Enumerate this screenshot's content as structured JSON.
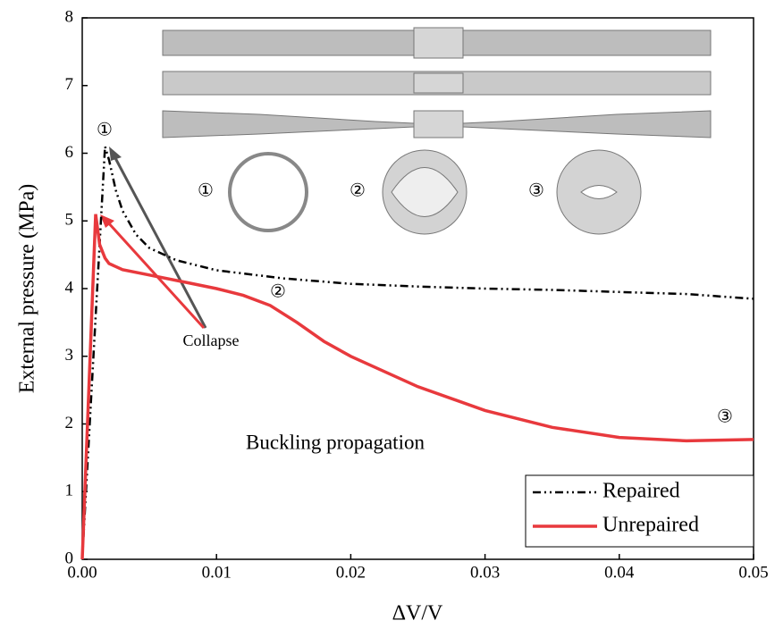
{
  "chart_data": {
    "type": "line",
    "xlabel": "ΔV/V",
    "ylabel": "External pressure (MPa)",
    "xlim": [
      0,
      0.05
    ],
    "ylim": [
      0,
      8
    ],
    "xticks": [
      {
        "value": 0,
        "label": "0.00"
      },
      0.01,
      0.02,
      0.03,
      0.04,
      0.05
    ],
    "yticks": [
      0,
      1,
      2,
      3,
      4,
      5,
      6,
      7,
      8
    ],
    "legend": "lower right",
    "series": [
      {
        "name": "Repaired",
        "color": "#000000",
        "style": "dashdotdot",
        "x": [
          0,
          0.0017,
          0.002,
          0.0025,
          0.003,
          0.004,
          0.005,
          0.007,
          0.01,
          0.015,
          0.02,
          0.025,
          0.03,
          0.035,
          0.04,
          0.045,
          0.05
        ],
        "values": [
          0,
          6.1,
          5.9,
          5.45,
          5.15,
          4.8,
          4.6,
          4.42,
          4.27,
          4.15,
          4.07,
          4.03,
          4.0,
          3.98,
          3.95,
          3.92,
          3.85
        ]
      },
      {
        "name": "Unrepaired",
        "color": "#e8393d",
        "style": "solid",
        "x": [
          0,
          0.001,
          0.0013,
          0.0017,
          0.002,
          0.003,
          0.005,
          0.008,
          0.01,
          0.012,
          0.014,
          0.016,
          0.018,
          0.02,
          0.025,
          0.03,
          0.035,
          0.04,
          0.045,
          0.05
        ],
        "values": [
          0,
          5.1,
          4.65,
          4.45,
          4.37,
          4.28,
          4.2,
          4.08,
          4.0,
          3.9,
          3.75,
          3.5,
          3.22,
          3.0,
          2.55,
          2.2,
          1.95,
          1.8,
          1.75,
          1.77
        ]
      }
    ],
    "annotations": [
      "Collapse",
      "Buckling propagation",
      "①",
      "②",
      "③",
      "①",
      "②",
      "③"
    ]
  }
}
